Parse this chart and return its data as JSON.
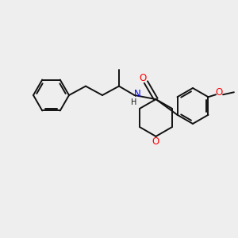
{
  "background_color": "#eeeeee",
  "bond_color": "#111111",
  "N_color": "#0000ff",
  "O_color": "#ff0000",
  "text_color": "#111111",
  "figsize": [
    3.0,
    3.0
  ],
  "dpi": 100,
  "xlim": [
    0,
    10
  ],
  "ylim": [
    0,
    10
  ],
  "lw": 1.4,
  "fs": 8.5
}
